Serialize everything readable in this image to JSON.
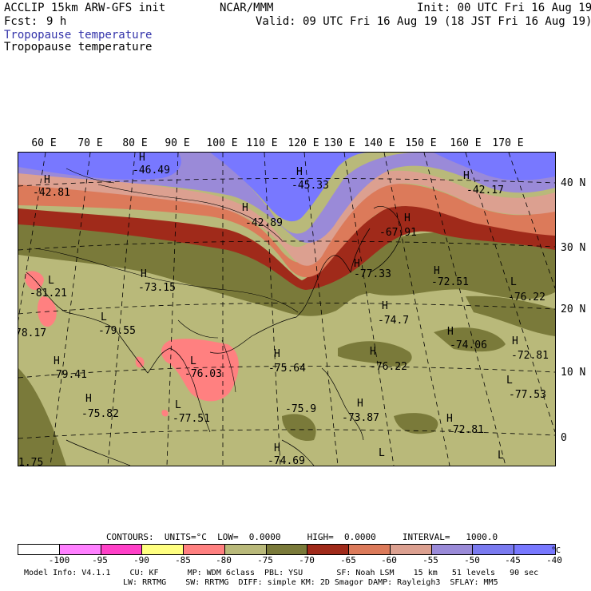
{
  "header": {
    "model_line": "ACCLIP 15km ARW-GFS init",
    "org": "NCAR/MMM",
    "init": "Init: 00 UTC Fri 16 Aug 19",
    "fcst_label": "Fcst:",
    "fcst_value": "9 h",
    "valid": "Valid: 09 UTC Fri 16 Aug 19 (18 JST Fri 16 Aug 19)",
    "field_title_blue": "Tropopause temperature",
    "field_title_black": "Tropopause temperature",
    "blue_color": "#3333aa"
  },
  "map": {
    "lon_labels": [
      "60 E",
      "70 E",
      "80 E",
      "90 E",
      "100 E",
      "110 E",
      "120 E",
      "130 E",
      "140 E",
      "150 E",
      "160 E",
      "170 E"
    ],
    "lat_labels": [
      "40 N",
      "30 N",
      "20 N",
      "10 N",
      "0"
    ],
    "pressure_labels": [
      {
        "text": "H"
      },
      {
        "text": "-42.81"
      },
      {
        "text": "H"
      },
      {
        "text": "-46.49"
      },
      {
        "text": "H"
      },
      {
        "text": "-45.33"
      },
      {
        "text": "H"
      },
      {
        "text": "-42.89"
      },
      {
        "text": "H"
      },
      {
        "text": "-42.17"
      },
      {
        "text": "H"
      },
      {
        "text": "-67.91"
      },
      {
        "text": "L"
      },
      {
        "text": "-81.21"
      },
      {
        "text": "H"
      },
      {
        "text": "-73.15"
      },
      {
        "text": "H"
      },
      {
        "text": "-77.33"
      },
      {
        "text": "H"
      },
      {
        "text": "-72.51"
      },
      {
        "text": "L"
      },
      {
        "text": "-76.22"
      },
      {
        "text": "78.17"
      },
      {
        "text": "L"
      },
      {
        "text": "-79.55"
      },
      {
        "text": "H"
      },
      {
        "text": "-74.7"
      },
      {
        "text": "H"
      },
      {
        "text": "-74.06"
      },
      {
        "text": "H"
      },
      {
        "text": "-72.81"
      },
      {
        "text": "H"
      },
      {
        "text": "-79.41"
      },
      {
        "text": "L"
      },
      {
        "text": "-76.03"
      },
      {
        "text": "H"
      },
      {
        "text": "-75.64"
      },
      {
        "text": "H"
      },
      {
        "text": "-76.22"
      },
      {
        "text": "L"
      },
      {
        "text": "-77.53"
      },
      {
        "text": "H"
      },
      {
        "text": "-75.82"
      },
      {
        "text": "L"
      },
      {
        "text": "-77.51"
      },
      {
        "text": "-75.9"
      },
      {
        "text": "H"
      },
      {
        "text": "-73.87"
      },
      {
        "text": "H"
      },
      {
        "text": "-72.81"
      },
      {
        "text": "H"
      },
      {
        "text": "-74.69"
      },
      {
        "text": "L"
      },
      {
        "text": "L"
      },
      {
        "text": "1.75"
      }
    ]
  },
  "contours_line": "CONTOURS:  UNITS=°C  LOW=  0.0000     HIGH=  0.0000     INTERVAL=   1000.0",
  "legend": {
    "colors": [
      "#ffffff",
      "#ff80ff",
      "#ff40c8",
      "#ffff80",
      "#ff8080",
      "#b9b97a",
      "#7a7a3a",
      "#a02a1a",
      "#dc7a5a",
      "#dca090",
      "#9a8ad8",
      "#7a7af0",
      "#7878ff"
    ],
    "ticks": [
      "-100",
      "-95",
      "-90",
      "-85",
      "-80",
      "-75",
      "-70",
      "-65",
      "-60",
      "-55",
      "-50",
      "-45",
      "-40"
    ],
    "unit": "°C"
  },
  "footer": {
    "line1": "Model Info: V4.1.1    CU: KF      MP: WDM 6class  PBL: YSU       SF: Noah LSM    15 km   51 levels   90 sec",
    "line2": "LW: RRTMG    SW: RRTMG  DIFF: simple KM: 2D Smagor DAMP: Rayleigh3  SFLAY: MM5"
  }
}
